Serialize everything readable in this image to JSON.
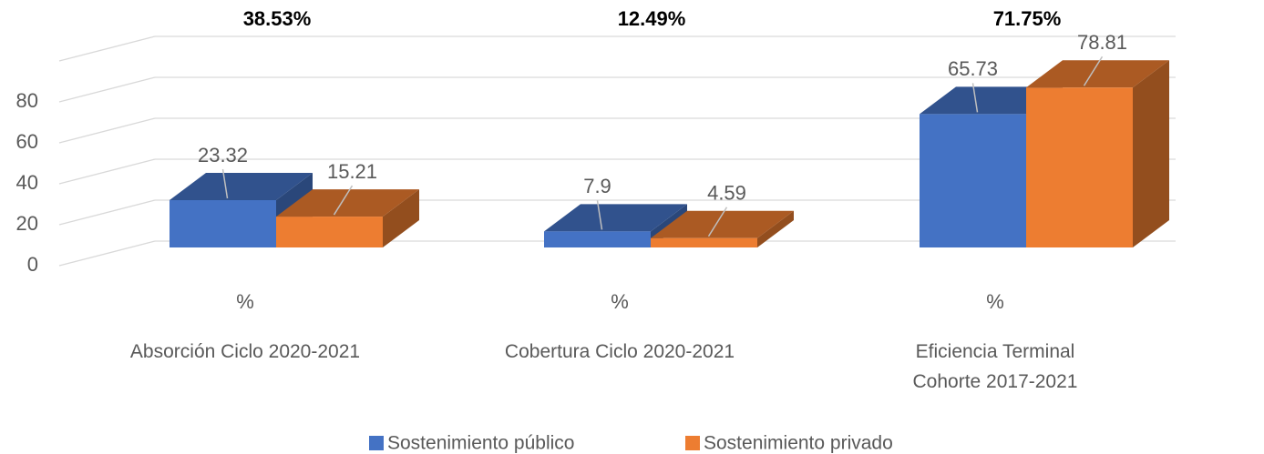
{
  "chart_data": {
    "type": "bar3d",
    "annotations": [
      "38.53%",
      "12.49%",
      "71.75%"
    ],
    "category_units": [
      "%",
      "%",
      "%"
    ],
    "categories": [
      "Absorción Ciclo 2020-2021",
      "Cobertura Ciclo 2020-2021",
      "Eficiencia Terminal\nCohorte 2017-2021"
    ],
    "series": [
      {
        "name": "Sostenimiento público",
        "color": "#4472c4",
        "values": [
          23.32,
          7.9,
          65.73
        ]
      },
      {
        "name": "Sostenimiento privado",
        "color": "#ed7d31",
        "values": [
          15.21,
          4.59,
          78.81
        ]
      }
    ],
    "ylim": [
      0,
      100
    ],
    "yticks": [
      0,
      20,
      40,
      60,
      80
    ],
    "grid": true,
    "legend": "bottom"
  }
}
